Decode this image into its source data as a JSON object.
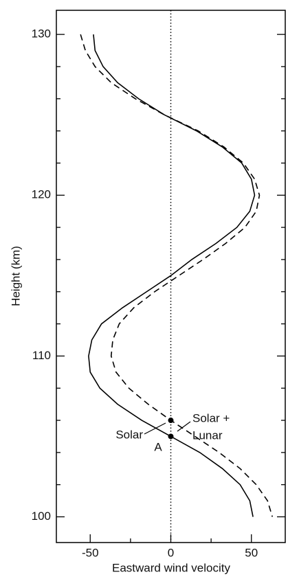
{
  "chart_data": {
    "type": "line",
    "xlabel": "Eastward wind velocity",
    "ylabel": "Height (km)",
    "heights": [
      130,
      129,
      128,
      127,
      126,
      125,
      124,
      123,
      122,
      121,
      120,
      119,
      118,
      117,
      116,
      115,
      114,
      113,
      112,
      111,
      110,
      109,
      108,
      107,
      106,
      105,
      104,
      103,
      102,
      101,
      100
    ],
    "series": [
      {
        "name": "Solar",
        "color": "#000000",
        "dash": "none",
        "values": [
          -48,
          -47,
          -42,
          -33,
          -20,
          -4,
          16,
          32,
          44,
          50,
          52,
          49,
          41,
          28,
          13,
          0,
          -15,
          -30,
          -43,
          -49,
          -51,
          -50,
          -44,
          -33,
          -18,
          0,
          18,
          32,
          43,
          49,
          51
        ]
      },
      {
        "name": "Solar + Lunar",
        "color": "#000000",
        "dash": "9 6",
        "values": [
          -56,
          -53,
          -47,
          -37,
          -22,
          -4,
          17,
          33,
          45,
          52,
          55,
          53,
          46,
          34,
          20,
          5,
          -10,
          -23,
          -32,
          -36,
          -37,
          -34,
          -26,
          -14,
          0,
          15,
          30,
          43,
          53,
          60,
          63
        ]
      }
    ],
    "markers": [
      {
        "x": 0,
        "y": 106
      },
      {
        "x": 0,
        "y": 105
      }
    ],
    "reference_x": 0,
    "annotations": [
      "Solar",
      "Solar +",
      "Lunar",
      "A"
    ],
    "xlim": [
      -71,
      71
    ],
    "ylim": [
      98.4,
      131.5
    ],
    "xticks": [
      -50,
      0,
      50
    ],
    "yticks": [
      100,
      110,
      120,
      130
    ],
    "xminorticks": [
      -25,
      25
    ],
    "yminorticks": [
      102,
      104,
      106,
      108,
      112,
      114,
      116,
      118,
      122,
      124,
      126,
      128
    ]
  }
}
